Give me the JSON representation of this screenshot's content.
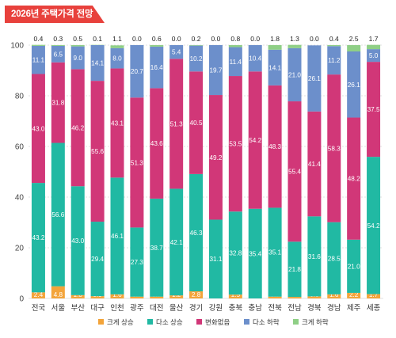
{
  "title": "2026년 주택가격 전망",
  "chart_data": {
    "type": "bar",
    "stacked": true,
    "ylim": [
      0,
      100
    ],
    "yticks": [
      0,
      20,
      40,
      60,
      80,
      100
    ],
    "grid": true,
    "legend_position": "bottom",
    "categories": [
      "전국",
      "서울",
      "부산",
      "대구",
      "인천",
      "광주",
      "대전",
      "울산",
      "경기",
      "강원",
      "충북",
      "충남",
      "전북",
      "전남",
      "경북",
      "경남",
      "제주",
      "세종"
    ],
    "series": [
      {
        "name": "크게 상승",
        "color": "#f3a43a",
        "values": [
          2.4,
          4.8,
          1.3,
          0.9,
          1.6,
          0.7,
          0.7,
          1.2,
          2.8,
          0.0,
          1.5,
          0.0,
          0.7,
          0.6,
          0.8,
          1.6,
          2.2,
          1.7
        ]
      },
      {
        "name": "다소 상승",
        "color": "#21b9a3",
        "values": [
          43.2,
          56.6,
          43.0,
          29.4,
          46.1,
          27.3,
          38.7,
          42.1,
          46.3,
          31.1,
          32.8,
          35.4,
          35.1,
          21.8,
          31.6,
          28.5,
          21.0,
          54.2
        ]
      },
      {
        "name": "변화없음",
        "color": "#d13778",
        "values": [
          43.0,
          31.8,
          46.2,
          55.6,
          43.1,
          51.3,
          43.6,
          51.3,
          40.5,
          49.2,
          53.5,
          54.2,
          48.3,
          55.4,
          41.4,
          58.3,
          48.2,
          37.5
        ]
      },
      {
        "name": "다소 하락",
        "color": "#6c8fcb",
        "values": [
          11.1,
          6.5,
          9.0,
          14.1,
          8.0,
          20.7,
          16.4,
          5.4,
          10.2,
          19.7,
          11.4,
          10.4,
          14.1,
          21.0,
          26.1,
          11.2,
          26.1,
          5.0
        ]
      },
      {
        "name": "크게 하락",
        "color": "#8fcf86",
        "values": [
          0.4,
          0.3,
          0.5,
          0.1,
          1.1,
          0.0,
          0.6,
          0.0,
          0.2,
          0.0,
          0.8,
          0.0,
          1.8,
          1.3,
          0.0,
          0.4,
          2.5,
          1.7
        ]
      }
    ]
  }
}
